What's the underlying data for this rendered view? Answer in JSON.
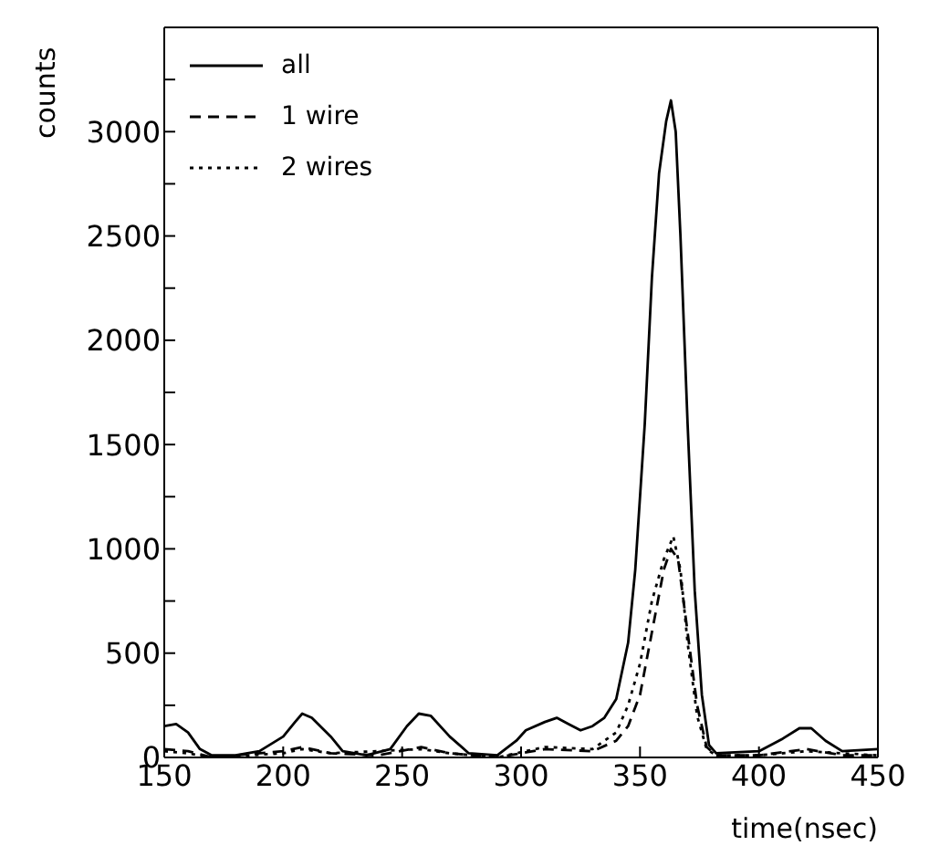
{
  "chart_data": {
    "type": "line",
    "xlabel": "time(nsec)",
    "ylabel": "counts",
    "xlim": [
      150,
      450
    ],
    "xticks": [
      150,
      200,
      250,
      300,
      350,
      400,
      450
    ],
    "ylim": [
      0,
      3500
    ],
    "yticks": [
      0,
      {
        "value": 250,
        "label": null
      },
      500,
      {
        "value": 750,
        "label": null
      },
      1000,
      {
        "value": 1250,
        "label": null
      },
      1500,
      {
        "value": 1750,
        "label": null
      },
      2000,
      {
        "value": 2250,
        "label": null
      },
      2500,
      {
        "value": 2750,
        "label": null
      },
      3000,
      {
        "value": 3250,
        "label": null
      }
    ],
    "legend": "top left",
    "marker": "none",
    "series": [
      {
        "name": "all",
        "color": "#000000",
        "line_style": "solid",
        "x": [
          150,
          155,
          160,
          165,
          170,
          180,
          190,
          200,
          205,
          208,
          212,
          220,
          225,
          235,
          245,
          252,
          257,
          262,
          270,
          278,
          290,
          298,
          302,
          310,
          315,
          320,
          325,
          330,
          335,
          340,
          345,
          348,
          352,
          355,
          358,
          361,
          363,
          365,
          367,
          370,
          373,
          376,
          379,
          382,
          400,
          410,
          417,
          422,
          428,
          435,
          450
        ],
        "values": [
          150,
          160,
          120,
          40,
          10,
          10,
          30,
          100,
          170,
          210,
          190,
          100,
          30,
          10,
          40,
          150,
          210,
          200,
          100,
          20,
          10,
          80,
          130,
          170,
          190,
          160,
          130,
          150,
          190,
          280,
          550,
          900,
          1600,
          2300,
          2800,
          3050,
          3150,
          3000,
          2500,
          1600,
          800,
          300,
          60,
          20,
          30,
          90,
          140,
          140,
          80,
          30,
          40
        ]
      },
      {
        "name": "1 wire",
        "color": "#000000",
        "line_style": "dashed",
        "x": [
          150,
          160,
          170,
          200,
          208,
          220,
          240,
          258,
          270,
          290,
          310,
          330,
          340,
          345,
          350,
          355,
          360,
          363,
          366,
          370,
          374,
          378,
          382,
          400,
          420,
          435,
          450
        ],
        "values": [
          40,
          30,
          0,
          30,
          50,
          20,
          10,
          50,
          20,
          0,
          40,
          30,
          80,
          150,
          300,
          600,
          900,
          1000,
          950,
          600,
          250,
          50,
          10,
          10,
          40,
          10,
          10
        ]
      },
      {
        "name": "2 wires",
        "color": "#000000",
        "line_style": "dotted",
        "x": [
          150,
          160,
          170,
          200,
          208,
          220,
          258,
          270,
          290,
          310,
          330,
          340,
          345,
          350,
          355,
          360,
          364,
          367,
          370,
          374,
          378,
          382,
          400,
          420,
          450
        ],
        "values": [
          30,
          20,
          0,
          20,
          40,
          20,
          40,
          20,
          0,
          50,
          40,
          120,
          250,
          450,
          750,
          950,
          1060,
          900,
          550,
          200,
          40,
          10,
          10,
          30,
          10
        ]
      }
    ]
  }
}
